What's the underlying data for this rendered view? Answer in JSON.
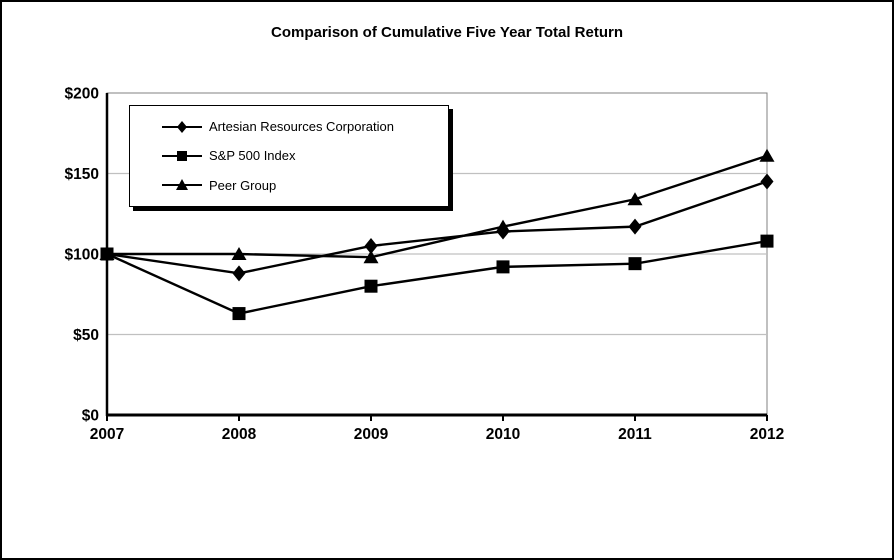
{
  "title": "Comparison of Cumulative Five Year Total Return",
  "chart_data": {
    "type": "line",
    "x": [
      2007,
      2008,
      2009,
      2010,
      2011,
      2012
    ],
    "series": [
      {
        "name": "Artesian Resources Corporation",
        "marker": "diamond",
        "values": [
          100,
          88,
          105,
          114,
          117,
          145
        ]
      },
      {
        "name": "S&P 500 Index",
        "marker": "square",
        "values": [
          100,
          63,
          80,
          92,
          94,
          108
        ]
      },
      {
        "name": "Peer Group",
        "marker": "triangle",
        "values": [
          100,
          100,
          98,
          117,
          134,
          161
        ]
      }
    ],
    "ylim": [
      0,
      200
    ],
    "ytick_values": [
      0,
      50,
      100,
      150,
      200
    ],
    "ytick_labels": [
      "$0",
      "$50",
      "$100",
      "$150",
      "$200"
    ],
    "grid": "horizontal-only",
    "legend_position": "upper-left",
    "colors": {
      "line": "#000000",
      "text": "#000000",
      "gridline": "#c0c0c0",
      "plot_frame": "#808080",
      "background": "#ffffff"
    }
  }
}
